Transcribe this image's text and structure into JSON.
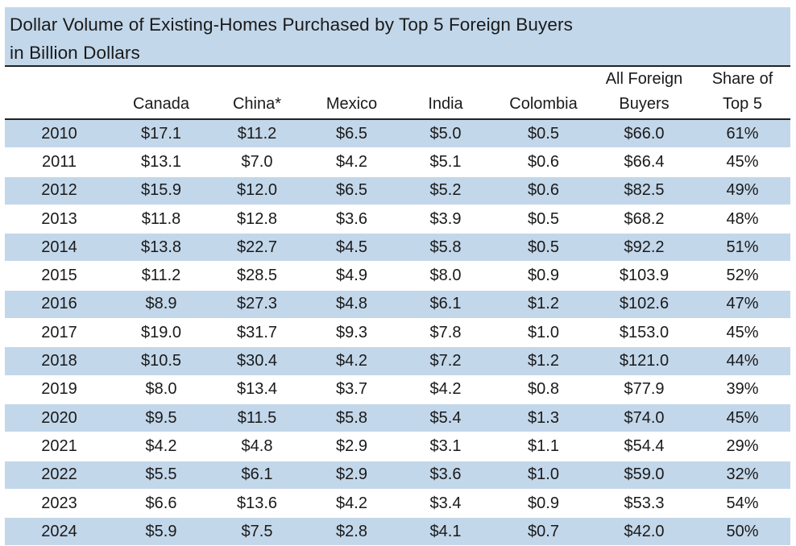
{
  "chart_data": {
    "type": "table",
    "title_line1": "Dollar Volume of Existing-Homes Purchased by Top 5 Foreign Buyers",
    "title_line2": "in Billion Dollars",
    "columns": [
      {
        "line1": "",
        "line2": ""
      },
      {
        "line1": "",
        "line2": "Canada"
      },
      {
        "line1": "",
        "line2": "China*"
      },
      {
        "line1": "",
        "line2": "Mexico"
      },
      {
        "line1": "",
        "line2": "India"
      },
      {
        "line1": "",
        "line2": "Colombia"
      },
      {
        "line1": "All Foreign",
        "line2": "Buyers"
      },
      {
        "line1": "Share of",
        "line2": "Top 5"
      }
    ],
    "rows": [
      [
        "2010",
        "$17.1",
        "$11.2",
        "$6.5",
        "$5.0",
        "$0.5",
        "$66.0",
        "61%"
      ],
      [
        "2011",
        "$13.1",
        "$7.0",
        "$4.2",
        "$5.1",
        "$0.6",
        "$66.4",
        "45%"
      ],
      [
        "2012",
        "$15.9",
        "$12.0",
        "$6.5",
        "$5.2",
        "$0.6",
        "$82.5",
        "49%"
      ],
      [
        "2013",
        "$11.8",
        "$12.8",
        "$3.6",
        "$3.9",
        "$0.5",
        "$68.2",
        "48%"
      ],
      [
        "2014",
        "$13.8",
        "$22.7",
        "$4.5",
        "$5.8",
        "$0.5",
        "$92.2",
        "51%"
      ],
      [
        "2015",
        "$11.2",
        "$28.5",
        "$4.9",
        "$8.0",
        "$0.9",
        "$103.9",
        "52%"
      ],
      [
        "2016",
        "$8.9",
        "$27.3",
        "$4.8",
        "$6.1",
        "$1.2",
        "$102.6",
        "47%"
      ],
      [
        "2017",
        "$19.0",
        "$31.7",
        "$9.3",
        "$7.8",
        "$1.0",
        "$153.0",
        "45%"
      ],
      [
        "2018",
        "$10.5",
        "$30.4",
        "$4.2",
        "$7.2",
        "$1.2",
        "$121.0",
        "44%"
      ],
      [
        "2019",
        "$8.0",
        "$13.4",
        "$3.7",
        "$4.2",
        "$0.8",
        "$77.9",
        "39%"
      ],
      [
        "2020",
        "$9.5",
        "$11.5",
        "$5.8",
        "$5.4",
        "$1.3",
        "$74.0",
        "45%"
      ],
      [
        "2021",
        "$4.2",
        "$4.8",
        "$2.9",
        "$3.1",
        "$1.1",
        "$54.4",
        "29%"
      ],
      [
        "2022",
        "$5.5",
        "$6.1",
        "$2.9",
        "$3.6",
        "$1.0",
        "$59.0",
        "32%"
      ],
      [
        "2023",
        "$6.6",
        "$13.6",
        "$4.2",
        "$3.4",
        "$0.9",
        "$53.3",
        "54%"
      ],
      [
        "2024",
        "$5.9",
        "$7.5",
        "$2.8",
        "$4.1",
        "$0.7",
        "$42.0",
        "50%"
      ]
    ],
    "row_shading": "alternating",
    "colors": {
      "band": "#c3d7ea",
      "rule": "#222222",
      "text": "#1a1a1a"
    }
  }
}
